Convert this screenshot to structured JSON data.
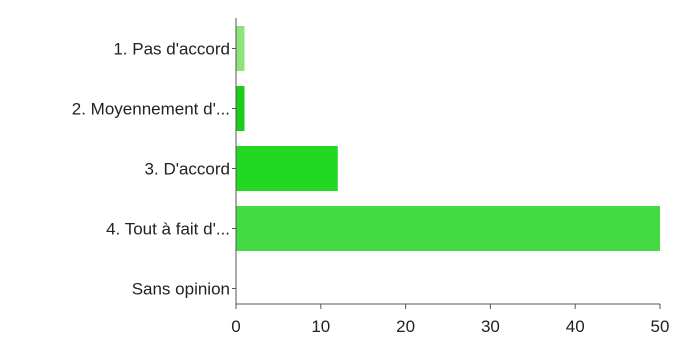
{
  "chart_data": {
    "type": "bar",
    "orientation": "horizontal",
    "categories": [
      "1. Pas d'accord",
      "2. Moyennement d'...",
      "3. D'accord",
      "4. Tout à fait d'...",
      "Sans opinion"
    ],
    "values": [
      1,
      1,
      12,
      50,
      0
    ],
    "colors": [
      "#8be57a",
      "#1ccd1c",
      "#22d822",
      "#44da44",
      "#cccccc"
    ],
    "xlim": [
      0,
      50
    ],
    "xticks": [
      0,
      10,
      20,
      30,
      40,
      50
    ],
    "title": "",
    "xlabel": "",
    "ylabel": "",
    "grid": false,
    "legend": "none"
  }
}
